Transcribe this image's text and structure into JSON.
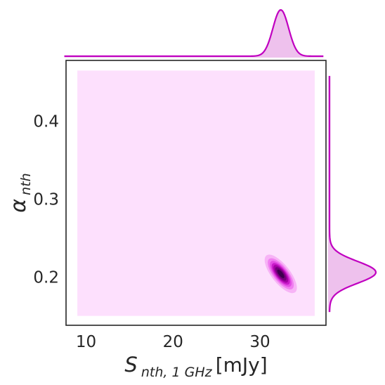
{
  "chart_data": {
    "type": "kde-jointplot",
    "xlabel": {
      "main": "S",
      "sub": "nth, 1 GHz",
      "unit": " [mJy]"
    },
    "ylabel": {
      "main": "α",
      "sub": "nth"
    },
    "xlim": [
      7.7,
      37.6
    ],
    "ylim": [
      0.138,
      0.478
    ],
    "xticks": [
      10,
      20,
      30
    ],
    "yticks": [
      0.2,
      0.3,
      0.4
    ],
    "xtick_labels": [
      "10",
      "20",
      "30"
    ],
    "ytick_labels": [
      "0.2",
      "0.3",
      "0.4"
    ],
    "kde_domain": {
      "x": [
        9.0,
        36.3
      ],
      "y": [
        0.15,
        0.465
      ]
    },
    "background_level_color": "#fde0fd",
    "joint_peak": {
      "x": 32.4,
      "y": 0.204,
      "sigma_x": 0.9,
      "sigma_y": 0.012,
      "correlation": -0.72
    },
    "contour_levels": [
      0.12,
      0.25,
      0.38,
      0.51,
      0.64,
      0.77,
      0.9
    ],
    "contour_colors": [
      "#f7b3f6",
      "#f07ef0",
      "#e34ee4",
      "#c91ac9",
      "#a300a4",
      "#74007b",
      "#3d004d"
    ],
    "marginal_x": {
      "mean": 32.4,
      "sigma": 0.9,
      "range": [
        7.5,
        37.3
      ],
      "baseline_level": 0.03
    },
    "marginal_y": {
      "mean": 0.206,
      "sigma": 0.014,
      "range": [
        0.155,
        0.458
      ],
      "baseline_level": 0.03
    },
    "marginal_line_color": "#c000c0",
    "marginal_fill_color": "#eec1ed",
    "grid": false
  }
}
